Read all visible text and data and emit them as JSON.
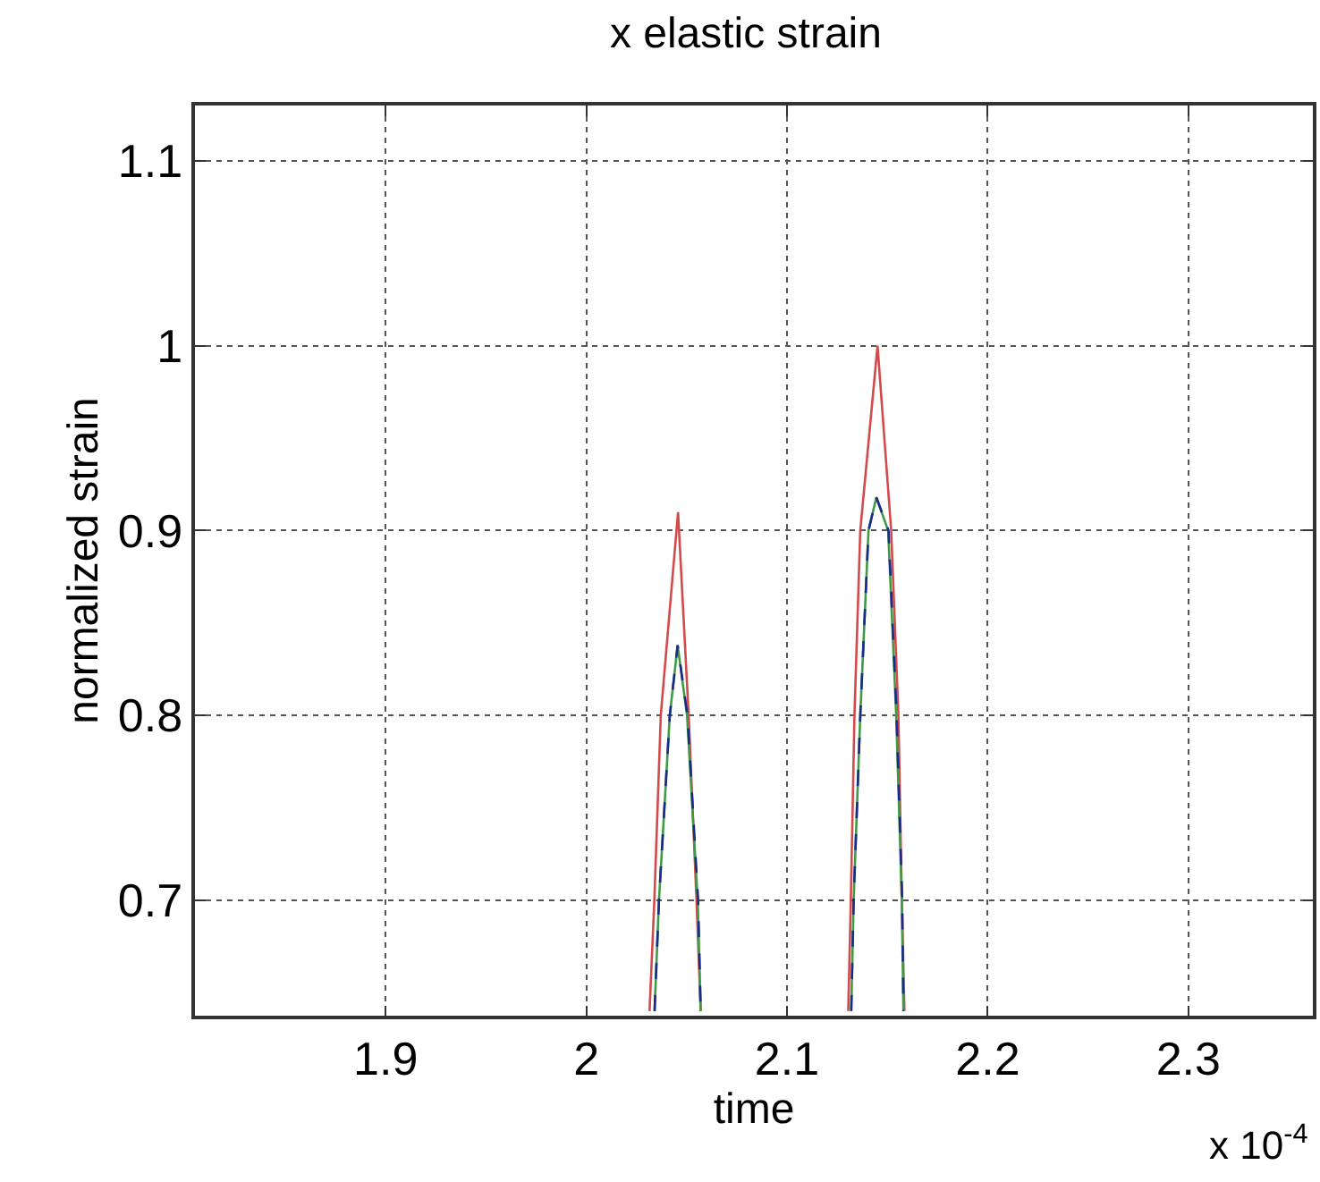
{
  "chart_data": {
    "type": "line",
    "title": "x elastic strain",
    "xlabel": "time",
    "ylabel": "normalized strain",
    "annotations": [
      "x 10$^{-4}$"
    ],
    "xlim": [
      1.805,
      2.362
    ],
    "ylim": [
      0.6375,
      1.13
    ],
    "xticks": [
      1.9,
      2,
      2.1,
      2.2,
      2.3
    ],
    "yticks": [
      0.7,
      0.8,
      0.9,
      1,
      1.1
    ],
    "grid": true,
    "line_style": "solid",
    "series": [
      {
        "color": "#d24a4a",
        "x": [
          2.0315,
          2.0339,
          2.0371,
          2.0457,
          2.051,
          2.0549,
          2.057,
          null,
          2.1305,
          2.1318,
          2.1336,
          2.1365,
          2.1451,
          2.1519,
          2.1555,
          2.1572,
          2.1585
        ],
        "values": [
          0.64,
          0.7,
          0.8,
          0.91,
          0.8,
          0.7,
          0.64,
          null,
          0.64,
          0.7,
          0.8,
          0.9,
          1.0,
          0.9,
          0.8,
          0.7,
          0.64
        ]
      },
      {
        "color": "#3f9a45",
        "x": [
          2.034,
          2.0362,
          2.0416,
          2.0455,
          2.0502,
          2.0555,
          2.057,
          null,
          2.132,
          2.1332,
          2.1365,
          2.1406,
          2.1445,
          2.1504,
          2.1544,
          2.1572,
          2.158
        ],
        "values": [
          0.64,
          0.7,
          0.8,
          0.838,
          0.8,
          0.7,
          0.64,
          null,
          0.64,
          0.7,
          0.8,
          0.9,
          0.918,
          0.9,
          0.8,
          0.7,
          0.64
        ]
      },
      {
        "color": "#1c2a8c",
        "line_style": "dashed",
        "x": [
          2.034,
          2.0362,
          2.0416,
          2.0455,
          2.0504,
          2.0557,
          2.057,
          null,
          2.132,
          2.1332,
          2.1365,
          2.1406,
          2.1445,
          2.1506,
          2.1546,
          2.1574,
          2.158
        ],
        "values": [
          0.64,
          0.7,
          0.8,
          0.838,
          0.8,
          0.7,
          0.64,
          null,
          0.64,
          0.7,
          0.8,
          0.9,
          0.918,
          0.9,
          0.8,
          0.7,
          0.64
        ]
      }
    ]
  }
}
